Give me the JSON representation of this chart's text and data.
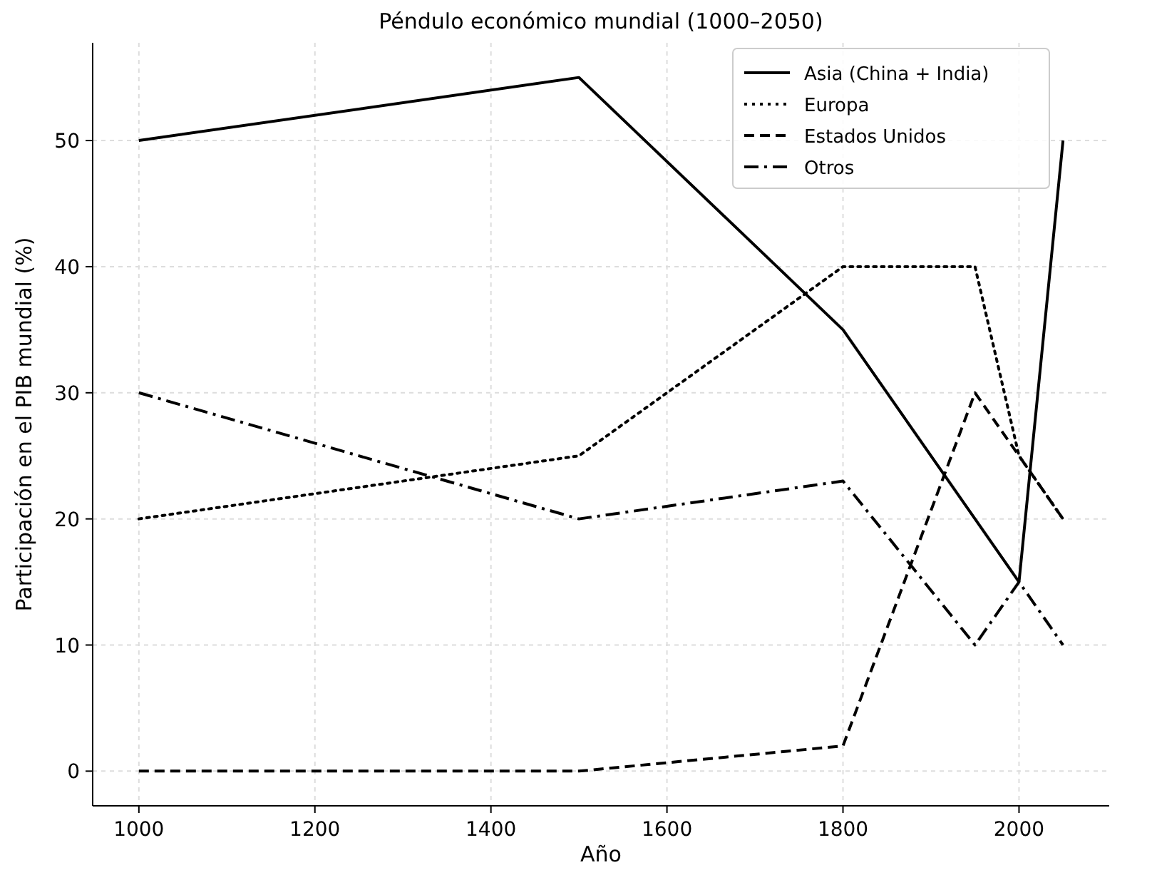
{
  "chart_data": {
    "type": "line",
    "title": "Péndulo económico mundial (1000–2050)",
    "xlabel": "Año",
    "ylabel": "Participación en el PIB mundial (%)",
    "x": [
      1000,
      1500,
      1800,
      1950,
      2000,
      2050
    ],
    "series": [
      {
        "name": "Asia (China + India)",
        "color": "#000000",
        "line_style": "solid",
        "values": [
          50,
          55,
          35,
          20,
          15,
          50
        ]
      },
      {
        "name": "Europa",
        "color": "#000000",
        "line_style": "dotted",
        "values": [
          20,
          25,
          40,
          40,
          25,
          20
        ]
      },
      {
        "name": "Estados Unidos",
        "color": "#000000",
        "line_style": "dashed",
        "values": [
          0,
          0,
          2,
          30,
          25,
          20
        ]
      },
      {
        "name": "Otros",
        "color": "#000000",
        "line_style": "dashdot",
        "values": [
          30,
          20,
          23,
          10,
          15,
          10
        ]
      }
    ],
    "xlim": [
      947.5,
      2102.5
    ],
    "xticks": [
      1000,
      1200,
      1400,
      1600,
      1800,
      2000
    ],
    "ylim": [
      -2.75,
      57.75
    ],
    "yticks": [
      0,
      10,
      20,
      30,
      40,
      50
    ],
    "grid": true,
    "legend": "top right",
    "marker": "none"
  }
}
